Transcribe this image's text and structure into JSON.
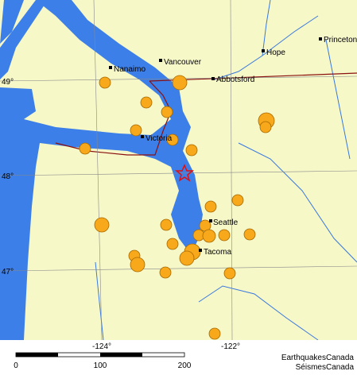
{
  "map": {
    "places": [
      {
        "label": "Vancouver"
      },
      {
        "label": "Nanaimo"
      },
      {
        "label": "Hope"
      },
      {
        "label": "Princeton"
      },
      {
        "label": "Abbotsford"
      },
      {
        "label": "Victoria"
      },
      {
        "label": "Seattle"
      },
      {
        "label": "Tacoma"
      }
    ],
    "lat_labels": [
      "49°",
      "48°",
      "47°"
    ],
    "lon_labels": [
      "-124°",
      "-122°"
    ],
    "scale_labels": [
      "0",
      "100",
      "200"
    ],
    "credits": [
      "EarthquakesCanada",
      "SéismesCanada"
    ]
  }
}
